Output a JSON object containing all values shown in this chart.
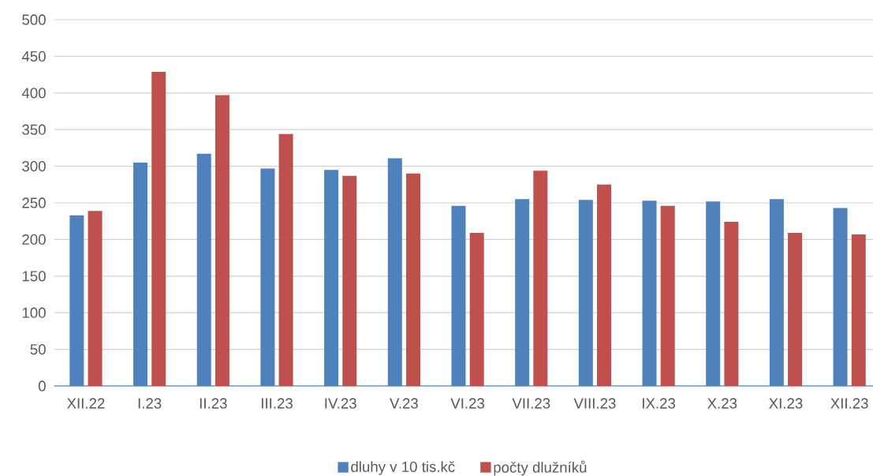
{
  "chart_data": {
    "type": "bar",
    "categories": [
      "XII.22",
      "I.23",
      "II.23",
      "III.23",
      "IV.23",
      "V.23",
      "VI.23",
      "VII.23",
      "VIII.23",
      "IX.23",
      "X.23",
      "XI.23",
      "XII.23"
    ],
    "series": [
      {
        "name": "dluhy v 10 tis.kč",
        "color": "#4f81bd",
        "values": [
          233,
          305,
          317,
          297,
          295,
          311,
          246,
          255,
          254,
          253,
          252,
          255,
          243
        ]
      },
      {
        "name": "počty dlužníků",
        "color": "#c0504d",
        "values": [
          239,
          429,
          397,
          344,
          287,
          290,
          209,
          294,
          275,
          246,
          224,
          209,
          207
        ]
      }
    ],
    "ylim": [
      0,
      500
    ],
    "yticks": [
      0,
      50,
      100,
      150,
      200,
      250,
      300,
      350,
      400,
      450,
      500
    ],
    "grid": "y",
    "legend": "bottom"
  }
}
